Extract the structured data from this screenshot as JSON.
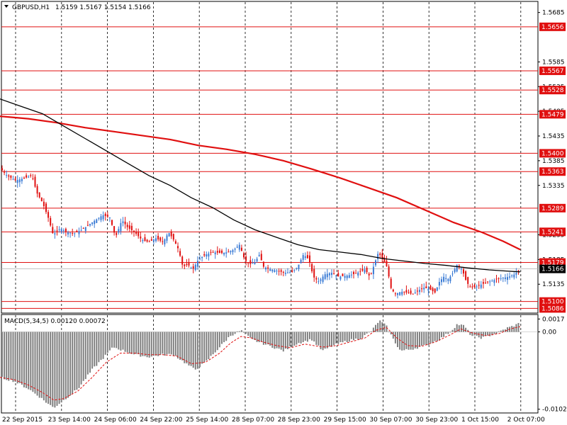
{
  "header": {
    "symbol": "GBPUSD,H1",
    "ohlc": "1.5159 1.5167 1.5154 1.5166"
  },
  "macd_header": "MACD(5,34,5) 0.00120 0.00072",
  "colors": {
    "bull": "#3a7bd5",
    "bear": "#e01010",
    "level": "#e01010",
    "ma_fast": "#000000",
    "ma_slow": "#e01010",
    "hist": "#808080",
    "signal": "#e01010"
  },
  "chart_data": [
    {
      "type": "candlestick",
      "ylim": [
        1.5078,
        1.5706
      ],
      "price_axis_ticks": [
        "1.5685",
        "1.5585",
        "1.5535",
        "1.5485",
        "1.5435",
        "1.5385",
        "1.5335",
        "1.5235",
        "1.5185",
        "1.5135"
      ],
      "x_labels": [
        "22 Sep 2015",
        "23 Sep 14:00",
        "24 Sep 06:00",
        "24 Sep 22:00",
        "25 Sep 14:00",
        "28 Sep 07:00",
        "28 Sep 23:00",
        "29 Sep 15:00",
        "30 Sep 07:00",
        "30 Sep 23:00",
        "1 Oct 15:00",
        "2 Oct 07:00"
      ],
      "levels": [
        "1.5656",
        "1.5567",
        "1.5528",
        "1.5479",
        "1.5400",
        "1.5363",
        "1.5289",
        "1.5241",
        "1.5179",
        "1.5100",
        "1.5086"
      ],
      "current_price": "1.5166",
      "price_path": [
        [
          0,
          1.537
        ],
        [
          10,
          1.5355
        ],
        [
          22,
          1.5345
        ],
        [
          35,
          1.535
        ],
        [
          45,
          1.5355
        ],
        [
          52,
          1.532
        ],
        [
          60,
          1.53
        ],
        [
          68,
          1.527
        ],
        [
          75,
          1.5235
        ],
        [
          85,
          1.5248
        ],
        [
          95,
          1.524
        ],
        [
          105,
          1.5238
        ],
        [
          115,
          1.5245
        ],
        [
          125,
          1.5255
        ],
        [
          135,
          1.5265
        ],
        [
          145,
          1.5275
        ],
        [
          155,
          1.527
        ],
        [
          163,
          1.523
        ],
        [
          172,
          1.5265
        ],
        [
          180,
          1.525
        ],
        [
          190,
          1.524
        ],
        [
          200,
          1.5225
        ],
        [
          210,
          1.522
        ],
        [
          220,
          1.5228
        ],
        [
          230,
          1.522
        ],
        [
          238,
          1.524
        ],
        [
          245,
          1.5225
        ],
        [
          252,
          1.5205
        ],
        [
          258,
          1.517
        ],
        [
          265,
          1.5175
        ],
        [
          272,
          1.5165
        ],
        [
          280,
          1.5185
        ],
        [
          290,
          1.5195
        ],
        [
          300,
          1.52
        ],
        [
          312,
          1.5198
        ],
        [
          322,
          1.52
        ],
        [
          330,
          1.5205
        ],
        [
          338,
          1.5215
        ],
        [
          345,
          1.5185
        ],
        [
          352,
          1.5175
        ],
        [
          360,
          1.518
        ],
        [
          366,
          1.5195
        ],
        [
          372,
          1.517
        ],
        [
          382,
          1.5165
        ],
        [
          392,
          1.5162
        ],
        [
          402,
          1.5158
        ],
        [
          412,
          1.516
        ],
        [
          420,
          1.517
        ],
        [
          428,
          1.5195
        ],
        [
          436,
          1.5185
        ],
        [
          442,
          1.515
        ],
        [
          450,
          1.514
        ],
        [
          458,
          1.5155
        ],
        [
          468,
          1.5158
        ],
        [
          478,
          1.515
        ],
        [
          488,
          1.5152
        ],
        [
          498,
          1.5155
        ],
        [
          508,
          1.516
        ],
        [
          515,
          1.5165
        ],
        [
          522,
          1.515
        ],
        [
          528,
          1.5175
        ],
        [
          534,
          1.52
        ],
        [
          540,
          1.5185
        ],
        [
          546,
          1.517
        ],
        [
          552,
          1.5125
        ],
        [
          558,
          1.5115
        ],
        [
          566,
          1.512
        ],
        [
          574,
          1.5118
        ],
        [
          582,
          1.5115
        ],
        [
          590,
          1.5122
        ],
        [
          598,
          1.5128
        ],
        [
          606,
          1.5125
        ],
        [
          614,
          1.5118
        ],
        [
          620,
          1.514
        ],
        [
          626,
          1.515
        ],
        [
          632,
          1.5145
        ],
        [
          638,
          1.5155
        ],
        [
          645,
          1.5175
        ],
        [
          652,
          1.5165
        ],
        [
          658,
          1.514
        ],
        [
          664,
          1.5128
        ],
        [
          672,
          1.513
        ],
        [
          680,
          1.5135
        ],
        [
          690,
          1.514
        ],
        [
          700,
          1.5145
        ],
        [
          710,
          1.5148
        ],
        [
          718,
          1.515
        ],
        [
          726,
          1.5155
        ],
        [
          734,
          1.5166
        ]
      ],
      "ma_fast_path": [
        [
          0,
          1.551
        ],
        [
          30,
          1.5495
        ],
        [
          60,
          1.548
        ],
        [
          90,
          1.5455
        ],
        [
          120,
          1.543
        ],
        [
          150,
          1.5405
        ],
        [
          180,
          1.538
        ],
        [
          210,
          1.5355
        ],
        [
          240,
          1.5335
        ],
        [
          270,
          1.531
        ],
        [
          300,
          1.529
        ],
        [
          330,
          1.5265
        ],
        [
          360,
          1.5245
        ],
        [
          390,
          1.523
        ],
        [
          420,
          1.5215
        ],
        [
          450,
          1.5205
        ],
        [
          480,
          1.52
        ],
        [
          510,
          1.5195
        ],
        [
          540,
          1.5187
        ],
        [
          570,
          1.5182
        ],
        [
          600,
          1.5177
        ],
        [
          630,
          1.5173
        ],
        [
          660,
          1.5168
        ],
        [
          690,
          1.5164
        ],
        [
          710,
          1.5162
        ],
        [
          734,
          1.516
        ]
      ],
      "ma_slow_path": [
        [
          0,
          1.5475
        ],
        [
          40,
          1.547
        ],
        [
          80,
          1.5462
        ],
        [
          120,
          1.5452
        ],
        [
          160,
          1.5444
        ],
        [
          200,
          1.5436
        ],
        [
          240,
          1.5428
        ],
        [
          280,
          1.5416
        ],
        [
          320,
          1.5408
        ],
        [
          360,
          1.5398
        ],
        [
          400,
          1.5385
        ],
        [
          440,
          1.5368
        ],
        [
          480,
          1.535
        ],
        [
          520,
          1.533
        ],
        [
          560,
          1.531
        ],
        [
          600,
          1.5285
        ],
        [
          640,
          1.526
        ],
        [
          680,
          1.524
        ],
        [
          710,
          1.5222
        ],
        [
          734,
          1.5205
        ]
      ]
    },
    {
      "type": "bar",
      "name": "MACD(5,34,5)",
      "ylim": [
        -0.0106,
        0.0022
      ],
      "y_ticks": [
        "0.0017",
        "0.00",
        "-0.0102"
      ],
      "hist_path": [
        [
          0,
          -0.006
        ],
        [
          20,
          -0.0065
        ],
        [
          40,
          -0.0075
        ],
        [
          55,
          -0.0085
        ],
        [
          68,
          -0.0095
        ],
        [
          76,
          -0.01
        ],
        [
          90,
          -0.009
        ],
        [
          110,
          -0.0075
        ],
        [
          130,
          -0.005
        ],
        [
          150,
          -0.003
        ],
        [
          160,
          -0.002
        ],
        [
          175,
          -0.0025
        ],
        [
          190,
          -0.003
        ],
        [
          210,
          -0.0033
        ],
        [
          230,
          -0.003
        ],
        [
          245,
          -0.003
        ],
        [
          260,
          -0.004
        ],
        [
          275,
          -0.005
        ],
        [
          290,
          -0.004
        ],
        [
          310,
          -0.002
        ],
        [
          325,
          -0.0005
        ],
        [
          340,
          0.0002
        ],
        [
          355,
          -0.001
        ],
        [
          370,
          -0.0015
        ],
        [
          385,
          -0.002
        ],
        [
          400,
          -0.0025
        ],
        [
          420,
          -0.0015
        ],
        [
          440,
          -0.001
        ],
        [
          455,
          -0.0025
        ],
        [
          470,
          -0.0018
        ],
        [
          490,
          -0.0012
        ],
        [
          510,
          -0.0008
        ],
        [
          525,
          0.0002
        ],
        [
          535,
          0.0015
        ],
        [
          545,
          0.0008
        ],
        [
          555,
          -0.001
        ],
        [
          565,
          -0.0025
        ],
        [
          580,
          -0.0023
        ],
        [
          600,
          -0.0018
        ],
        [
          620,
          -0.001
        ],
        [
          635,
          0.0
        ],
        [
          645,
          0.001
        ],
        [
          655,
          0.0008
        ],
        [
          665,
          -0.0005
        ],
        [
          680,
          -0.0008
        ],
        [
          700,
          -0.0002
        ],
        [
          715,
          0.0005
        ],
        [
          725,
          0.0008
        ],
        [
          734,
          0.0012
        ]
      ],
      "signal_path": [
        [
          0,
          -0.006
        ],
        [
          20,
          -0.0063
        ],
        [
          40,
          -0.007
        ],
        [
          60,
          -0.008
        ],
        [
          76,
          -0.009
        ],
        [
          90,
          -0.0088
        ],
        [
          110,
          -0.0078
        ],
        [
          130,
          -0.006
        ],
        [
          150,
          -0.004
        ],
        [
          170,
          -0.0028
        ],
        [
          190,
          -0.0028
        ],
        [
          210,
          -0.003
        ],
        [
          230,
          -0.003
        ],
        [
          250,
          -0.0032
        ],
        [
          270,
          -0.0042
        ],
        [
          290,
          -0.004
        ],
        [
          310,
          -0.0028
        ],
        [
          325,
          -0.0015
        ],
        [
          340,
          -0.0006
        ],
        [
          355,
          -0.0008
        ],
        [
          370,
          -0.0013
        ],
        [
          390,
          -0.0018
        ],
        [
          410,
          -0.0021
        ],
        [
          430,
          -0.0016
        ],
        [
          455,
          -0.002
        ],
        [
          475,
          -0.0018
        ],
        [
          495,
          -0.0013
        ],
        [
          515,
          -0.0008
        ],
        [
          530,
          0.0002
        ],
        [
          545,
          0.0006
        ],
        [
          560,
          -0.0008
        ],
        [
          575,
          -0.0018
        ],
        [
          595,
          -0.0019
        ],
        [
          615,
          -0.0013
        ],
        [
          635,
          -0.0004
        ],
        [
          650,
          0.0004
        ],
        [
          665,
          -0.0001
        ],
        [
          685,
          -0.0005
        ],
        [
          705,
          -0.0002
        ],
        [
          720,
          0.0004
        ],
        [
          734,
          0.0007
        ]
      ]
    }
  ]
}
